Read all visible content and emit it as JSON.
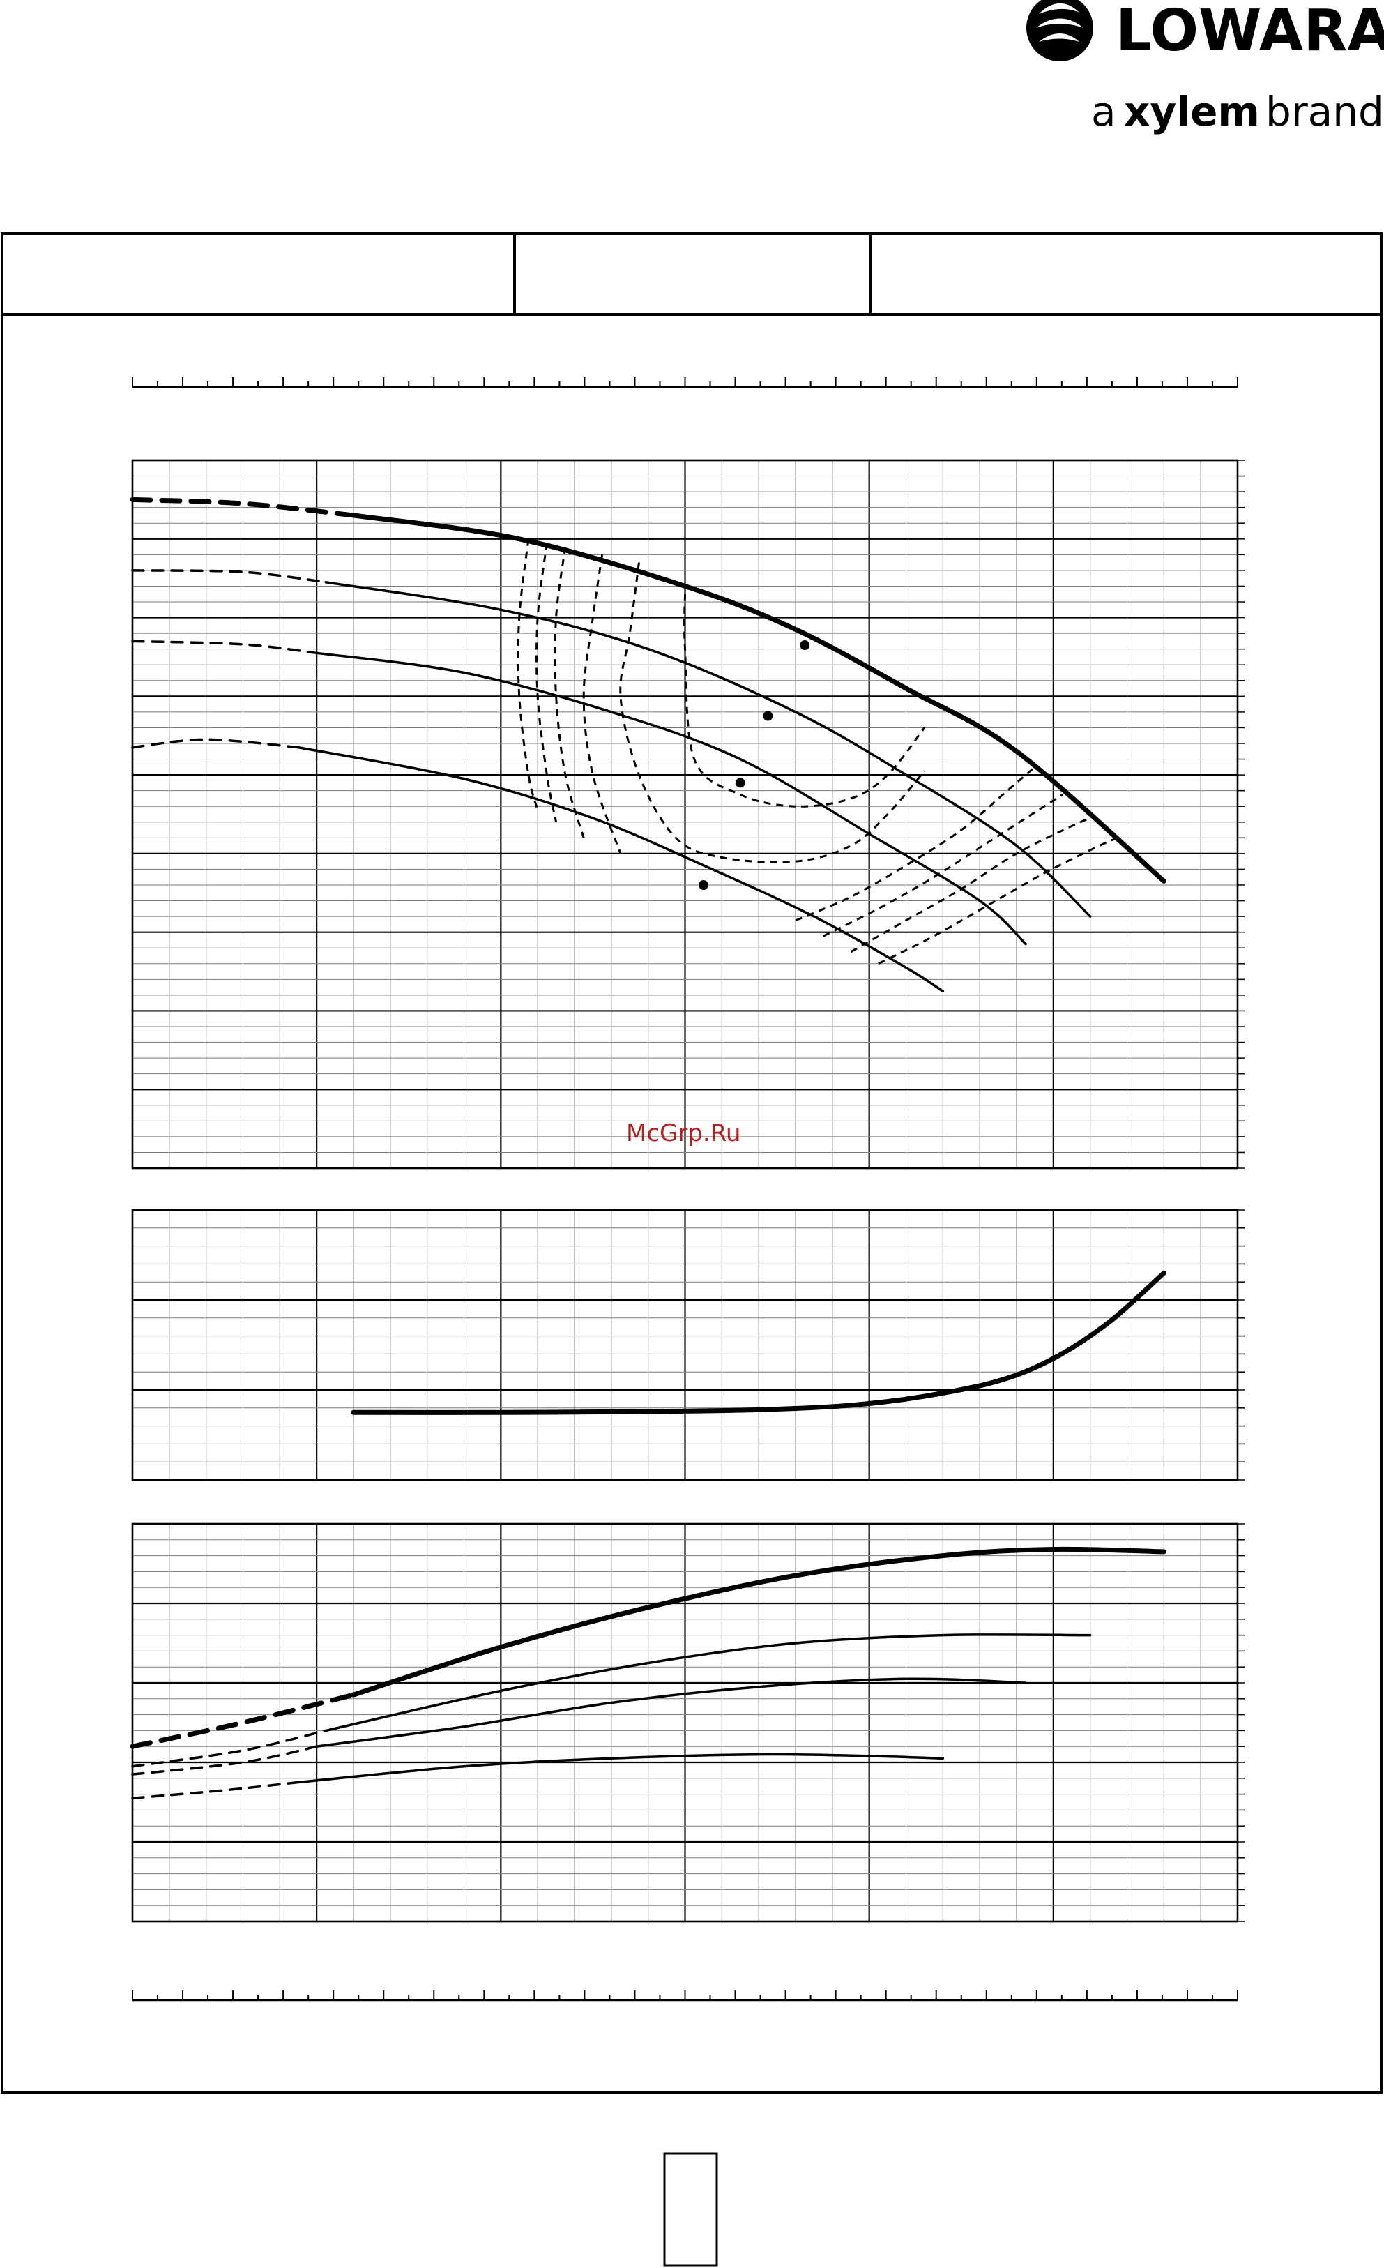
{
  "header": {
    "logo_text": "LOWARA",
    "tagline_prefix": "a",
    "tagline_brand": "xylem",
    "tagline_suffix": "brand"
  },
  "title_box": {
    "cell_1": "",
    "cell_2": "",
    "cell_3": ""
  },
  "watermark": "McGrp.Ru",
  "page_number": "",
  "colors": {
    "ink": "#000000",
    "grid_major": "#000000",
    "grid_minor": "#7a7a7a",
    "watermark": "#b22222"
  },
  "chart_data": [
    {
      "type": "line",
      "panel": "head",
      "xlim": [
        0,
        6
      ],
      "ylim": [
        0,
        9
      ],
      "series": [
        {
          "style": "bold",
          "points": [
            [
              1.2,
              8.3
            ],
            [
              2.1,
              8.0
            ],
            [
              3.0,
              7.4
            ],
            [
              3.6,
              6.85
            ],
            [
              4.2,
              6.1
            ],
            [
              4.8,
              5.3
            ],
            [
              5.6,
              3.65
            ]
          ]
        },
        {
          "style": "regular",
          "points": [
            [
              1.05,
              7.45
            ],
            [
              2.0,
              7.1
            ],
            [
              2.8,
              6.6
            ],
            [
              3.6,
              5.8
            ],
            [
              4.2,
              5.0
            ],
            [
              4.8,
              4.1
            ],
            [
              5.2,
              3.2
            ]
          ]
        },
        {
          "style": "regular",
          "points": [
            [
              1.0,
              6.55
            ],
            [
              1.8,
              6.3
            ],
            [
              2.6,
              5.8
            ],
            [
              3.3,
              5.2
            ],
            [
              4.0,
              4.25
            ],
            [
              4.6,
              3.4
            ],
            [
              4.85,
              2.85
            ]
          ]
        },
        {
          "style": "regular",
          "points": [
            [
              0.9,
              5.35
            ],
            [
              1.8,
              4.95
            ],
            [
              2.5,
              4.45
            ],
            [
              3.1,
              3.85
            ],
            [
              3.7,
              3.2
            ],
            [
              4.2,
              2.55
            ],
            [
              4.4,
              2.25
            ]
          ]
        }
      ],
      "series_low_flow_dashed": [
        {
          "style": "bold",
          "points": [
            [
              0.0,
              8.5
            ],
            [
              0.6,
              8.45
            ],
            [
              1.2,
              8.3
            ]
          ]
        },
        {
          "style": "regular",
          "points": [
            [
              0.0,
              7.6
            ],
            [
              0.6,
              7.58
            ],
            [
              1.05,
              7.45
            ]
          ]
        },
        {
          "style": "regular",
          "points": [
            [
              0.0,
              6.7
            ],
            [
              0.6,
              6.66
            ],
            [
              1.0,
              6.55
            ]
          ]
        },
        {
          "style": "regular",
          "points": [
            [
              0.0,
              5.35
            ],
            [
              0.4,
              5.45
            ],
            [
              0.9,
              5.35
            ]
          ]
        }
      ],
      "markers": [
        [
          3.65,
          6.65
        ],
        [
          3.45,
          5.75
        ],
        [
          3.3,
          4.9
        ],
        [
          3.1,
          3.6
        ]
      ],
      "efficiency_contours": [
        {
          "points": [
            [
              2.15,
              8.0
            ],
            [
              2.1,
              7.0
            ],
            [
              2.1,
              6.0
            ],
            [
              2.15,
              5.0
            ],
            [
              2.2,
              4.55
            ]
          ]
        },
        {
          "points": [
            [
              2.25,
              7.95
            ],
            [
              2.2,
              7.0
            ],
            [
              2.2,
              6.0
            ],
            [
              2.25,
              5.0
            ],
            [
              2.3,
              4.4
            ]
          ]
        },
        {
          "points": [
            [
              2.35,
              7.9
            ],
            [
              2.3,
              7.0
            ],
            [
              2.3,
              6.0
            ],
            [
              2.35,
              5.0
            ],
            [
              2.45,
              4.2
            ]
          ]
        },
        {
          "points": [
            [
              2.55,
              7.8
            ],
            [
              2.5,
              7.0
            ],
            [
              2.45,
              6.0
            ],
            [
              2.5,
              5.0
            ],
            [
              2.65,
              4.0
            ]
          ]
        },
        {
          "points": [
            [
              2.75,
              7.7
            ],
            [
              2.7,
              6.8
            ],
            [
              2.65,
              6.0
            ],
            [
              2.75,
              5.0
            ],
            [
              2.95,
              4.2
            ],
            [
              3.2,
              3.95
            ],
            [
              3.6,
              3.9
            ],
            [
              3.9,
              4.1
            ],
            [
              4.1,
              4.5
            ],
            [
              4.3,
              5.05
            ]
          ]
        },
        {
          "points": [
            [
              3.0,
              7.3
            ],
            [
              3.0,
              6.6
            ],
            [
              3.05,
              5.2
            ],
            [
              3.3,
              4.75
            ],
            [
              3.6,
              4.6
            ],
            [
              3.9,
              4.7
            ],
            [
              4.1,
              5.0
            ],
            [
              4.3,
              5.6
            ]
          ]
        },
        {
          "points": [
            [
              3.6,
              3.15
            ],
            [
              3.9,
              3.45
            ],
            [
              4.2,
              3.85
            ],
            [
              4.5,
              4.3
            ],
            [
              4.75,
              4.8
            ],
            [
              4.9,
              5.1
            ]
          ]
        },
        {
          "points": [
            [
              3.75,
              2.95
            ],
            [
              4.05,
              3.3
            ],
            [
              4.35,
              3.7
            ],
            [
              4.65,
              4.15
            ],
            [
              4.95,
              4.6
            ],
            [
              5.05,
              4.75
            ]
          ]
        },
        {
          "points": [
            [
              3.9,
              2.75
            ],
            [
              4.2,
              3.15
            ],
            [
              4.5,
              3.55
            ],
            [
              4.8,
              4.0
            ],
            [
              5.1,
              4.35
            ],
            [
              5.2,
              4.45
            ]
          ]
        },
        {
          "points": [
            [
              4.05,
              2.6
            ],
            [
              4.35,
              2.95
            ],
            [
              4.65,
              3.35
            ],
            [
              4.95,
              3.75
            ],
            [
              5.25,
              4.1
            ],
            [
              5.35,
              4.2
            ]
          ]
        }
      ]
    },
    {
      "type": "line",
      "panel": "npsh",
      "xlim": [
        0,
        6
      ],
      "ylim": [
        0,
        3
      ],
      "series": [
        {
          "style": "bold",
          "points": [
            [
              1.2,
              0.75
            ],
            [
              2.0,
              0.75
            ],
            [
              2.8,
              0.76
            ],
            [
              3.4,
              0.78
            ],
            [
              3.9,
              0.83
            ],
            [
              4.3,
              0.93
            ],
            [
              4.7,
              1.1
            ],
            [
              5.0,
              1.35
            ],
            [
              5.3,
              1.75
            ],
            [
              5.6,
              2.3
            ]
          ]
        }
      ]
    },
    {
      "type": "line",
      "panel": "power",
      "xlim": [
        0,
        6
      ],
      "ylim": [
        0,
        5
      ],
      "series": [
        {
          "style": "bold",
          "points": [
            [
              1.2,
              2.85
            ],
            [
              2.0,
              3.45
            ],
            [
              2.8,
              3.95
            ],
            [
              3.6,
              4.35
            ],
            [
              4.4,
              4.6
            ],
            [
              5.0,
              4.68
            ],
            [
              5.6,
              4.65
            ]
          ]
        },
        {
          "style": "regular",
          "points": [
            [
              1.05,
              2.4
            ],
            [
              2.0,
              2.9
            ],
            [
              2.8,
              3.25
            ],
            [
              3.6,
              3.5
            ],
            [
              4.4,
              3.6
            ],
            [
              5.2,
              3.6
            ]
          ]
        },
        {
          "style": "regular",
          "points": [
            [
              1.0,
              2.2
            ],
            [
              1.8,
              2.45
            ],
            [
              2.6,
              2.75
            ],
            [
              3.4,
              2.95
            ],
            [
              4.2,
              3.05
            ],
            [
              4.85,
              3.0
            ]
          ]
        },
        {
          "style": "regular",
          "points": [
            [
              0.9,
              1.75
            ],
            [
              1.8,
              1.95
            ],
            [
              2.6,
              2.05
            ],
            [
              3.4,
              2.1
            ],
            [
              4.0,
              2.08
            ],
            [
              4.4,
              2.05
            ]
          ]
        }
      ],
      "series_low_flow_dashed": [
        {
          "style": "bold",
          "points": [
            [
              0.0,
              2.2
            ],
            [
              0.6,
              2.5
            ],
            [
              1.2,
              2.85
            ]
          ]
        },
        {
          "style": "regular",
          "points": [
            [
              0.0,
              1.95
            ],
            [
              0.6,
              2.15
            ],
            [
              1.05,
              2.4
            ]
          ]
        },
        {
          "style": "regular",
          "points": [
            [
              0.0,
              1.85
            ],
            [
              0.6,
              2.0
            ],
            [
              1.0,
              2.2
            ]
          ]
        },
        {
          "style": "regular",
          "points": [
            [
              0.0,
              1.55
            ],
            [
              0.5,
              1.65
            ],
            [
              0.9,
              1.75
            ]
          ]
        }
      ]
    }
  ]
}
